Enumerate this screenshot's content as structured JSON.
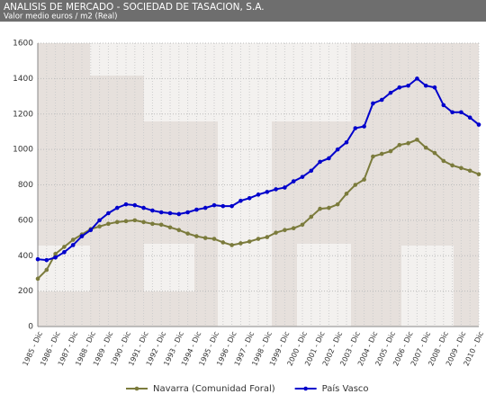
{
  "header": {
    "title": "ANALISIS DE MERCADO - SOCIEDAD DE TASACION, S.A.",
    "subtitle": "Valor medio euros / m2 (Real)"
  },
  "chart_data": {
    "type": "line",
    "categories": [
      "1985 - Dic",
      null,
      "1986 - Dic",
      null,
      "1987 - Dic",
      null,
      "1988 - Dic",
      null,
      "1989 - Dic",
      null,
      "1990 - Dic",
      null,
      "1991 - Dic",
      null,
      "1992 - Dic",
      null,
      "1993 - Dic",
      null,
      "1994 - Dic",
      null,
      "1995 - Dic",
      null,
      "1996 - Dic",
      null,
      "1997 - Dic",
      null,
      "1998 - Dic",
      null,
      "1999 - Dic",
      null,
      "2000 - Dic",
      null,
      "2001 - Dic",
      null,
      "2002 - Dic",
      null,
      "2003 - Dic",
      null,
      "2004 - Dic",
      null,
      "2005 - Dic",
      null,
      "2006 - Dic",
      null,
      "2007 - Dic",
      null,
      "2008 - Dic",
      null,
      "2009 - Dic",
      null,
      "2010 - Dic"
    ],
    "series": [
      {
        "name": "Navarra (Comunidad Foral)",
        "color": "#7b7b3c",
        "values": [
          270,
          320,
          410,
          450,
          490,
          520,
          550,
          565,
          580,
          590,
          595,
          600,
          590,
          580,
          575,
          560,
          545,
          525,
          510,
          500,
          495,
          475,
          460,
          470,
          480,
          495,
          505,
          530,
          545,
          555,
          575,
          620,
          665,
          670,
          690,
          750,
          800,
          830,
          960,
          975,
          990,
          1025,
          1035,
          1055,
          1010,
          980,
          935,
          910,
          895,
          880,
          860
        ]
      },
      {
        "name": "País Vasco",
        "color": "#0000cc",
        "values": [
          380,
          375,
          390,
          420,
          460,
          510,
          545,
          600,
          640,
          670,
          690,
          685,
          670,
          655,
          645,
          640,
          635,
          645,
          660,
          670,
          685,
          680,
          680,
          710,
          725,
          745,
          760,
          775,
          785,
          820,
          845,
          880,
          930,
          950,
          1000,
          1040,
          1120,
          1130,
          1260,
          1280,
          1320,
          1350,
          1360,
          1400,
          1360,
          1350,
          1250,
          1210,
          1210,
          1180,
          1140
        ]
      }
    ],
    "ylim": [
      0,
      1600
    ],
    "yticks": [
      0,
      200,
      400,
      600,
      800,
      1000,
      1200,
      1400,
      1600
    ],
    "grid": true
  }
}
